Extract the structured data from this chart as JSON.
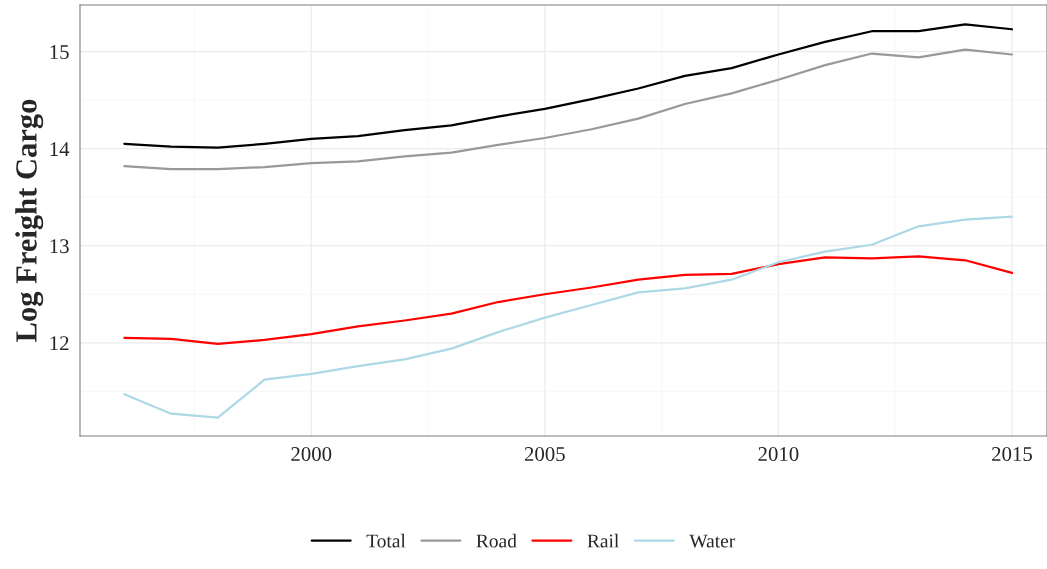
{
  "chart_data": {
    "type": "line",
    "ylabel": "Log Freight Cargo",
    "x": [
      1996,
      1997,
      1998,
      1999,
      2000,
      2001,
      2002,
      2003,
      2004,
      2005,
      2006,
      2007,
      2008,
      2009,
      2010,
      2011,
      2012,
      2013,
      2014,
      2015
    ],
    "series": [
      {
        "name": "Total",
        "color": "#000000",
        "values": [
          14.05,
          14.02,
          14.01,
          14.05,
          14.1,
          14.13,
          14.19,
          14.24,
          14.33,
          14.41,
          14.51,
          14.62,
          14.75,
          14.83,
          14.97,
          15.1,
          15.21,
          15.21,
          15.28,
          15.23
        ]
      },
      {
        "name": "Road",
        "color": "#999999",
        "values": [
          13.82,
          13.79,
          13.79,
          13.81,
          13.85,
          13.87,
          13.92,
          13.96,
          14.04,
          14.11,
          14.2,
          14.31,
          14.46,
          14.57,
          14.71,
          14.86,
          14.98,
          14.94,
          15.02,
          14.97
        ]
      },
      {
        "name": "Rail",
        "color": "#ff0000",
        "values": [
          12.05,
          12.04,
          11.99,
          12.03,
          12.09,
          12.17,
          12.23,
          12.3,
          12.42,
          12.5,
          12.57,
          12.65,
          12.7,
          12.71,
          12.81,
          12.88,
          12.87,
          12.89,
          12.85,
          12.72
        ]
      },
      {
        "name": "Water",
        "color": "#add8e6",
        "values": [
          11.47,
          11.27,
          11.23,
          11.62,
          11.68,
          11.76,
          11.83,
          11.94,
          12.11,
          12.26,
          12.39,
          12.52,
          12.56,
          12.65,
          12.83,
          12.94,
          13.01,
          13.2,
          13.27,
          13.3
        ]
      }
    ],
    "xlim": [
      1995.05,
      2015.75
    ],
    "xticks": [
      2000,
      2005,
      2010,
      2015
    ],
    "ylim": [
      11.04,
      15.48
    ],
    "yticks": [
      12,
      13,
      14,
      15
    ],
    "grid": true,
    "legend": "bottom",
    "line_style": "solid",
    "marker": "none"
  }
}
